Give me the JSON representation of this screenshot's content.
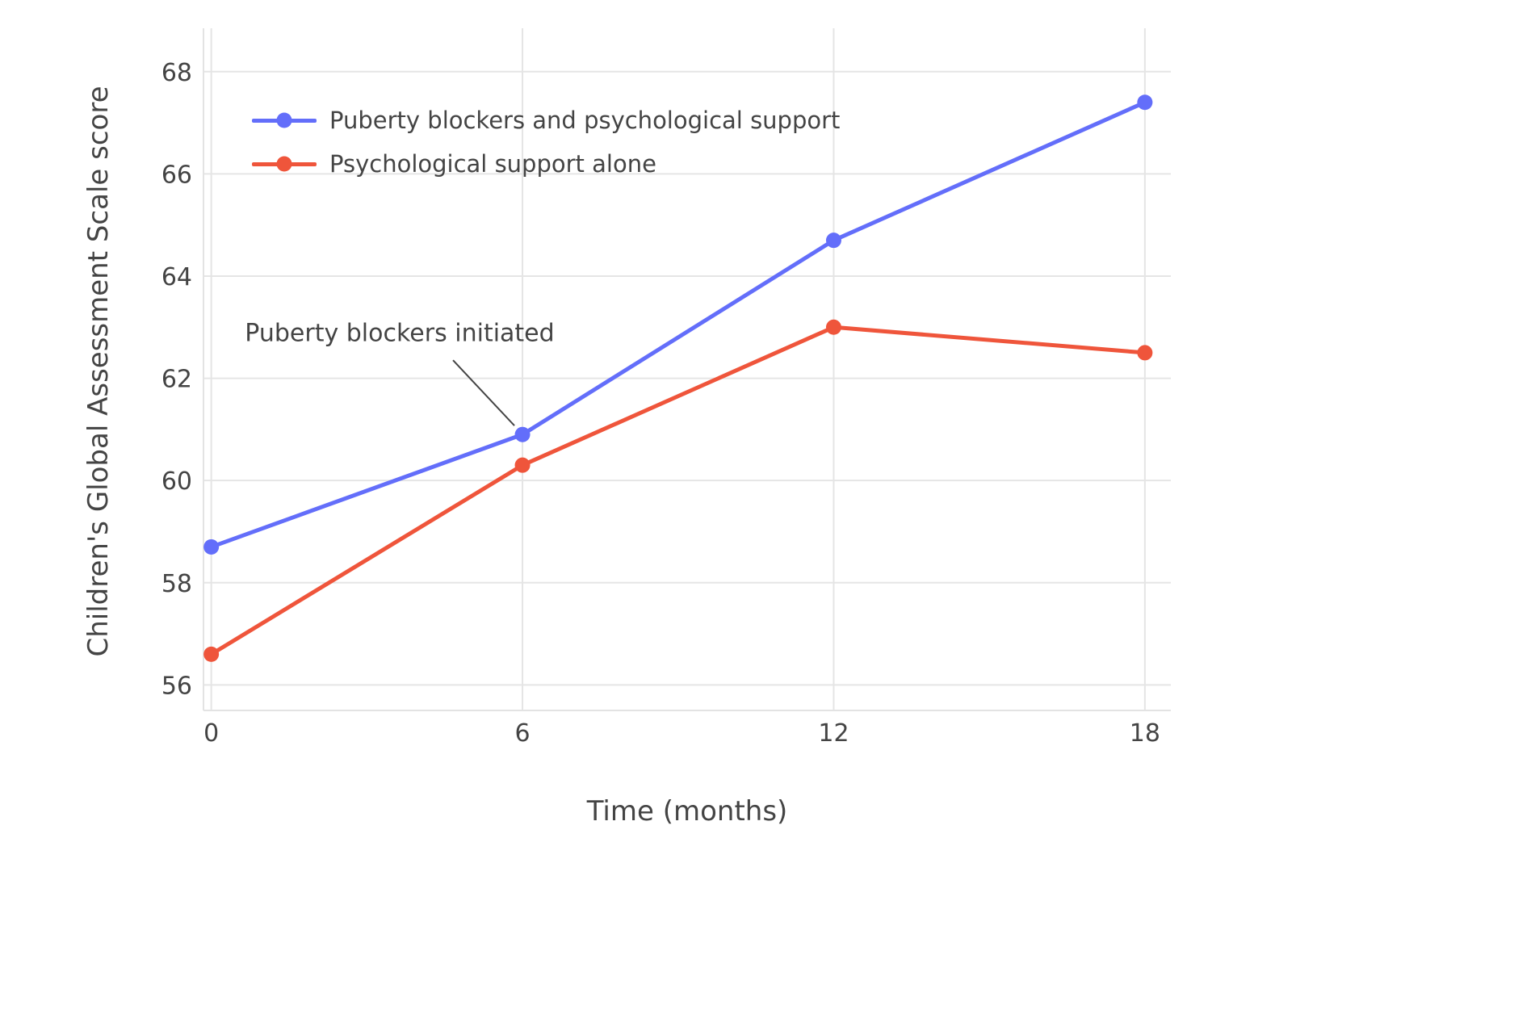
{
  "chart_data": {
    "type": "line",
    "x": [
      0,
      6,
      12,
      18
    ],
    "series": [
      {
        "id": "blockers",
        "name": "Puberty blockers and psychological support",
        "color": "#636EFA",
        "values": [
          58.7,
          60.9,
          64.7,
          67.4
        ]
      },
      {
        "id": "support",
        "name": "Psychological support alone",
        "color": "#EF553B",
        "values": [
          56.6,
          60.3,
          63.0,
          62.5
        ]
      }
    ],
    "title": "",
    "xlabel": "Time (months)",
    "ylabel": "Children's Global Assessment Scale score",
    "xlim": [
      -0.15,
      18.5
    ],
    "ylim": [
      55.5,
      68.85
    ],
    "xticks": [
      0,
      6,
      12,
      18
    ],
    "yticks": [
      56,
      58,
      60,
      62,
      64,
      66,
      68
    ],
    "grid": true,
    "legend_position": "top-left-inside",
    "annotation": {
      "text": "Puberty blockers initiated",
      "x": 6,
      "y": 60.9
    }
  },
  "colors": {
    "background": "#ffffff",
    "grid": "#e5e5e5",
    "axis": "#e3e3e3",
    "text": "#444444",
    "annotation_line": "#444444",
    "series_blue": "#636EFA",
    "series_red": "#EF553B"
  }
}
